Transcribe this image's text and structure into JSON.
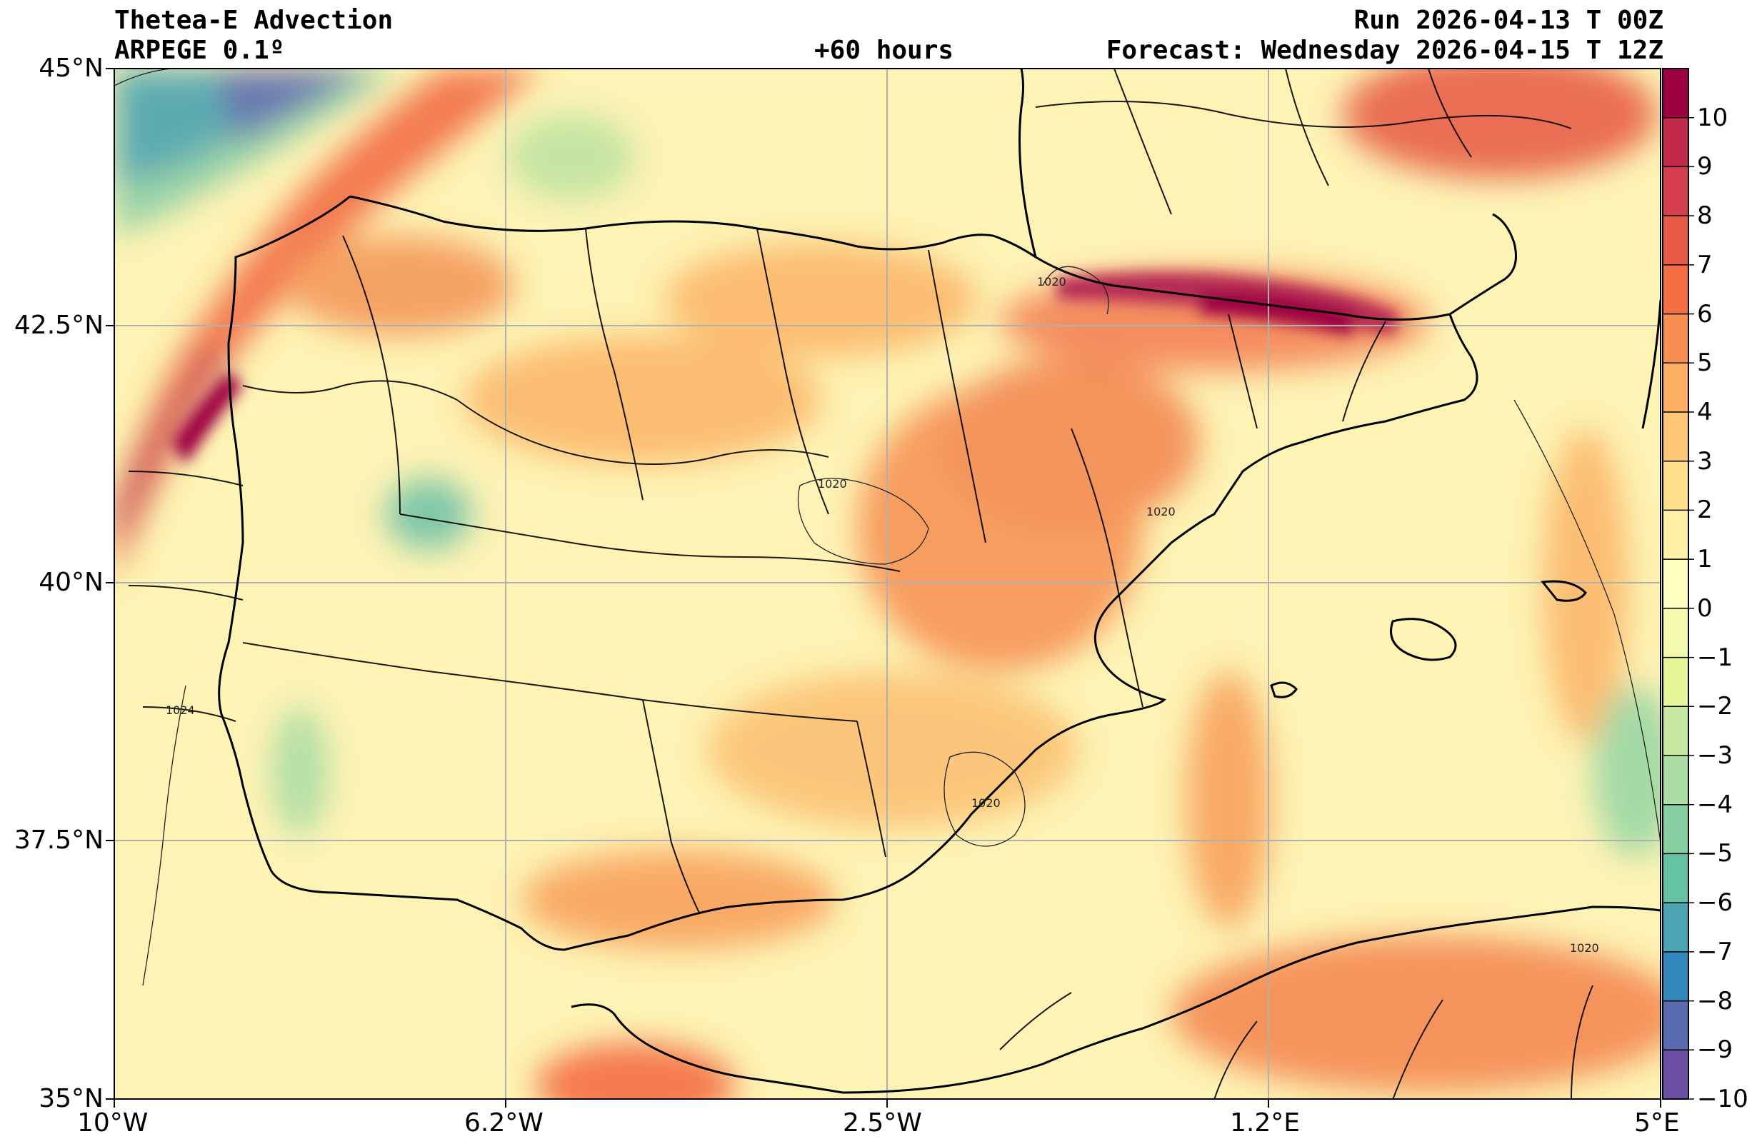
{
  "header": {
    "title": "Thetea-E Advection",
    "model": "ARPEGE 0.1º",
    "lead": "+60 hours",
    "run": "Run 2026-04-13 T 00Z",
    "forecast": "Forecast: Wednesday 2026-04-15 T 12Z"
  },
  "axes": {
    "lat_labels": [
      "45°N",
      "42.5°N",
      "40°N",
      "37.5°N",
      "35°N"
    ],
    "lon_labels": [
      "10°W",
      "6.2°W",
      "2.5°W",
      "1.2°E",
      "5°E"
    ]
  },
  "colorbar": {
    "labels": [
      "10",
      "9",
      "8",
      "7",
      "6",
      "5",
      "4",
      "3",
      "2",
      "1",
      "0",
      "−1",
      "−2",
      "−3",
      "−4",
      "−5",
      "−6",
      "−7",
      "−8",
      "−9",
      "−10"
    ],
    "colors": [
      "#9e0142",
      "#c2294a",
      "#d53e4f",
      "#e65a46",
      "#f46d43",
      "#f88e52",
      "#fdae61",
      "#fdc776",
      "#fee08b",
      "#fff0a6",
      "#ffffbf",
      "#f4faad",
      "#e6f598",
      "#c7e8a0",
      "#abdda4",
      "#88cfa4",
      "#66c2a5",
      "#4ba4b1",
      "#3288bd",
      "#5a6ab0",
      "#6e4fa6"
    ]
  },
  "isobar_labels": [
    "1020",
    "1020",
    "1020",
    "1020",
    "1024",
    "1020"
  ]
}
